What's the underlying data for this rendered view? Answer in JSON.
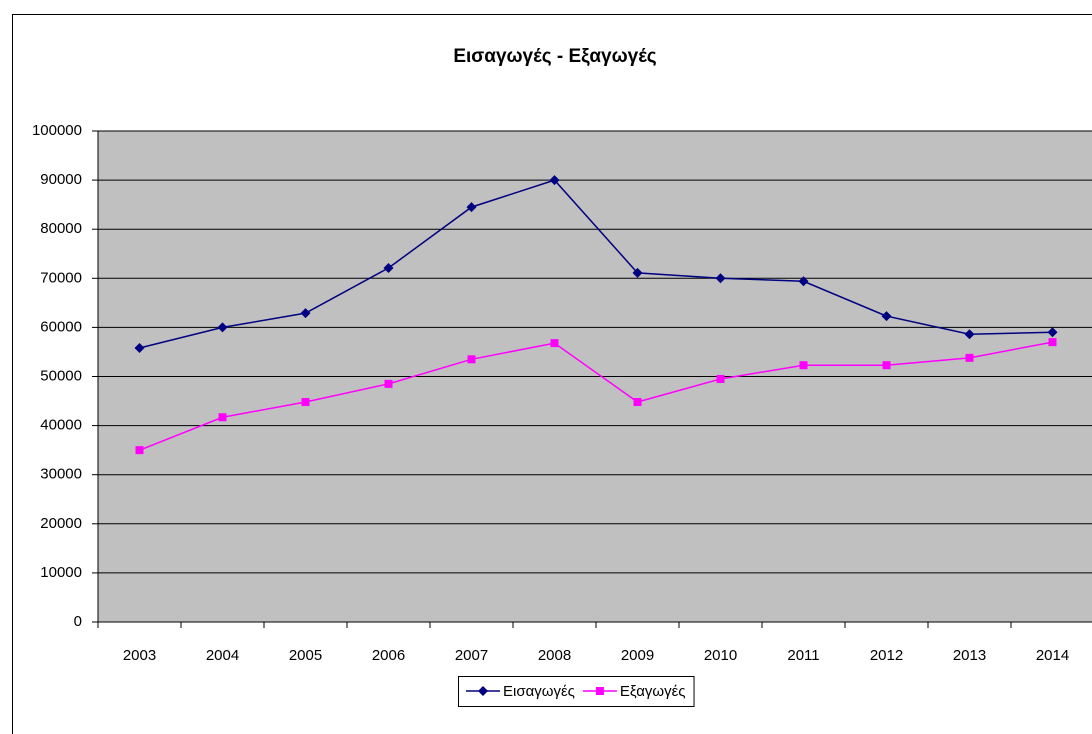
{
  "chart_data": {
    "type": "line",
    "title": "Εισαγωγές - Εξαγωγές",
    "categories": [
      "2003",
      "2004",
      "2005",
      "2006",
      "2007",
      "2008",
      "2009",
      "2010",
      "2011",
      "2012",
      "2013",
      "2014"
    ],
    "series": [
      {
        "name": "Εισαγωγές",
        "color": "#000080",
        "marker": "diamond",
        "values": [
          55800,
          60000,
          62900,
          72100,
          84500,
          90000,
          71100,
          70000,
          69400,
          62300,
          58600,
          59000
        ]
      },
      {
        "name": "Εξαγωγές",
        "color": "#ff00ff",
        "marker": "square",
        "values": [
          35000,
          41700,
          44800,
          48500,
          53500,
          56800,
          44800,
          49500,
          52300,
          52300,
          53800,
          57000
        ]
      }
    ],
    "ylim": [
      0,
      100000
    ],
    "yticks": [
      0,
      10000,
      20000,
      30000,
      40000,
      50000,
      60000,
      70000,
      80000,
      90000,
      100000
    ],
    "grid": true,
    "legend": "bottom"
  }
}
